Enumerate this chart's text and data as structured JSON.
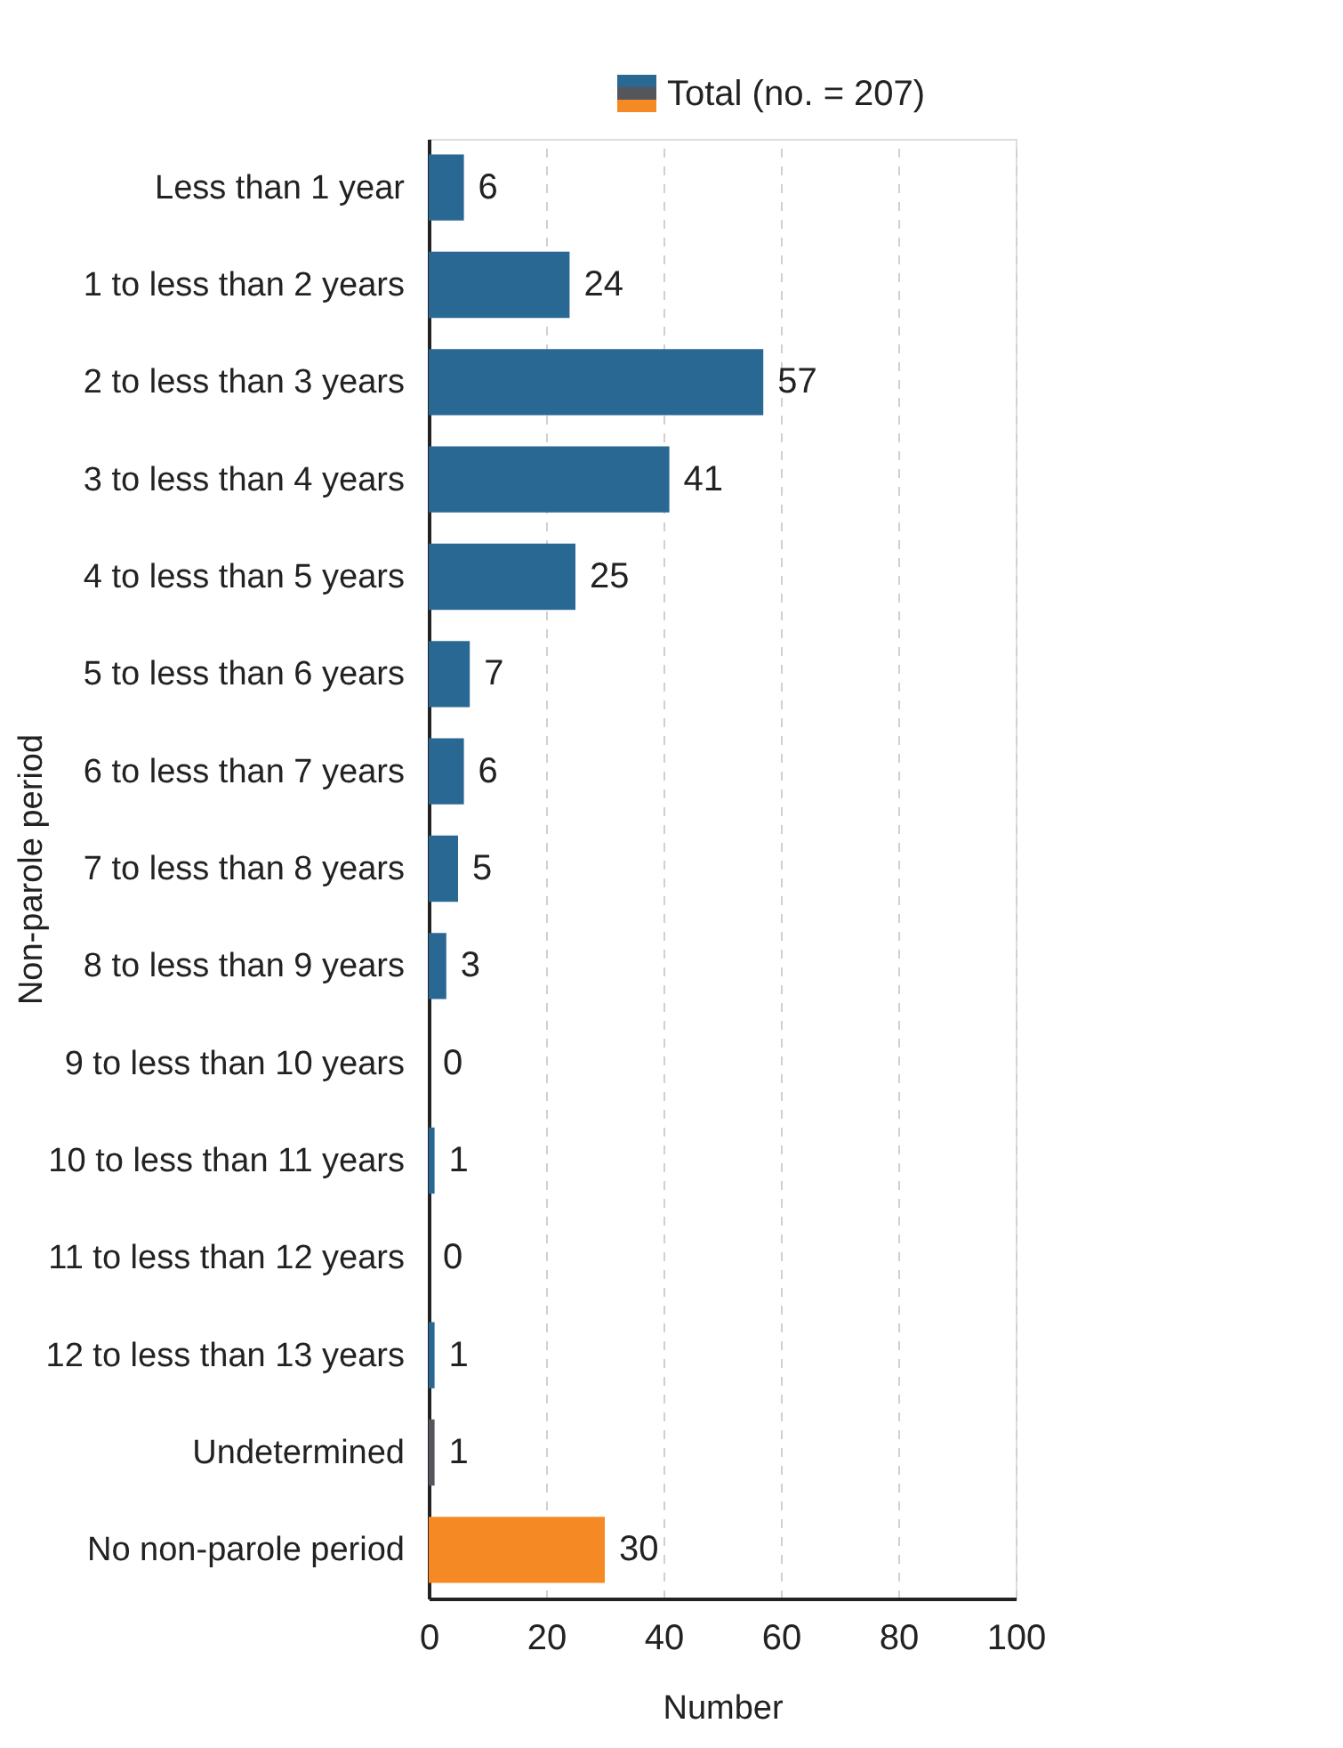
{
  "chart_data": {
    "type": "bar",
    "orientation": "horizontal",
    "xlabel": "Number",
    "ylabel": "Non-parole period",
    "categories": [
      "Less than 1 year",
      "1 to less than 2 years",
      "2 to less than 3 years",
      "3 to less than 4 years",
      "4 to less than 5 years",
      "5 to less than 6 years",
      "6 to less than 7 years",
      "7 to less than 8 years",
      "8 to less than 9 years",
      "9 to less than 10 years",
      "10 to less than 11 years",
      "11 to less than 12 years",
      "12 to less than 13 years",
      "Undetermined",
      "No non-parole period"
    ],
    "series": [
      {
        "name": "Total (no. = 207)",
        "values": [
          6,
          24,
          57,
          41,
          25,
          7,
          6,
          5,
          3,
          0,
          1,
          0,
          1,
          1,
          30
        ]
      }
    ],
    "colors": [
      "#2a6894",
      "#2a6894",
      "#2a6894",
      "#2a6894",
      "#2a6894",
      "#2a6894",
      "#2a6894",
      "#2a6894",
      "#2a6894",
      "#2a6894",
      "#2a6894",
      "#2a6894",
      "#2a6894",
      "#55565b",
      "#f58a24"
    ],
    "xlim": [
      0,
      100
    ],
    "xticks": [
      0,
      20,
      40,
      60,
      80,
      100
    ],
    "grid": "x",
    "legend": "top right",
    "data_labels": true
  }
}
